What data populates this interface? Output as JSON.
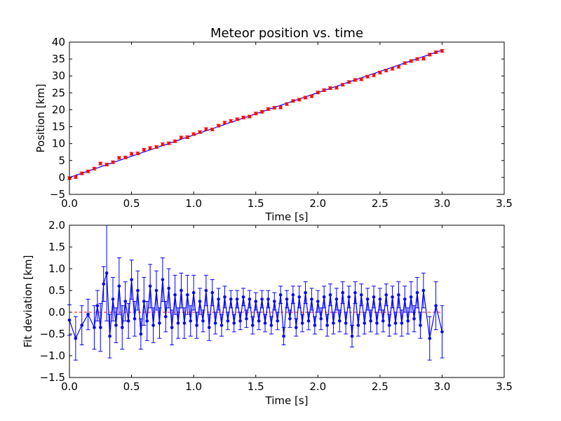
{
  "chart_data": [
    {
      "type": "scatter",
      "title": "Meteor position vs. time",
      "xlabel": "Time [s]",
      "ylabel": "Position [km]",
      "xlim": [
        0.0,
        3.5
      ],
      "ylim": [
        -5,
        40
      ],
      "xticks": [
        "0.0",
        "0.5",
        "1.0",
        "1.5",
        "2.0",
        "2.5",
        "3.0",
        "3.5"
      ],
      "yticks": [
        "−5",
        "0",
        "5",
        "10",
        "15",
        "20",
        "25",
        "30",
        "35",
        "40"
      ],
      "grid": false,
      "legend": "none",
      "colors": {
        "points": "#ff0000",
        "fit": "#0000ff"
      },
      "fit_line": {
        "x": [
          0.0,
          3.0
        ],
        "y": [
          0.0,
          37.6
        ]
      },
      "series": [
        {
          "error": 0.4,
          "x": [
            0.0,
            0.05,
            0.1,
            0.15,
            0.2,
            0.25,
            0.3,
            0.35,
            0.4,
            0.45,
            0.5,
            0.55,
            0.6,
            0.65,
            0.7,
            0.75,
            0.8,
            0.85,
            0.9,
            0.95,
            1.0,
            1.05,
            1.1,
            1.15,
            1.2,
            1.25,
            1.3,
            1.35,
            1.4,
            1.45,
            1.5,
            1.55,
            1.6,
            1.65,
            1.7,
            1.75,
            1.8,
            1.85,
            1.9,
            1.95,
            2.0,
            2.05,
            2.1,
            2.15,
            2.2,
            2.25,
            2.3,
            2.35,
            2.4,
            2.45,
            2.5,
            2.55,
            2.6,
            2.65,
            2.7,
            2.75,
            2.8,
            2.85,
            2.9,
            2.95,
            3.0
          ],
          "y": [
            -0.2,
            0.1,
            1.2,
            1.8,
            2.6,
            4.1,
            3.8,
            4.5,
            5.8,
            5.9,
            7.0,
            7.1,
            8.2,
            8.7,
            9.0,
            9.8,
            10.1,
            10.7,
            11.8,
            11.9,
            12.8,
            13.4,
            14.3,
            14.2,
            15.3,
            16.2,
            16.7,
            17.2,
            17.7,
            18.0,
            18.9,
            19.4,
            20.2,
            20.6,
            20.7,
            21.7,
            22.6,
            23.0,
            23.6,
            24.0,
            25.1,
            25.8,
            26.4,
            26.5,
            27.4,
            28.2,
            28.8,
            29.0,
            29.8,
            30.2,
            31.0,
            31.6,
            32.1,
            32.7,
            33.8,
            34.4,
            35.0,
            35.1,
            36.3,
            37.0,
            37.4
          ]
        }
      ]
    },
    {
      "type": "line",
      "title": "",
      "xlabel": "Time [s]",
      "ylabel": "Fit deviation [km]",
      "xlim": [
        0.0,
        3.5
      ],
      "ylim": [
        -1.5,
        2.0
      ],
      "xticks": [
        "0.0",
        "0.5",
        "1.0",
        "1.5",
        "2.0",
        "2.5",
        "3.0",
        "3.5"
      ],
      "yticks": [
        "−1.5",
        "−1.0",
        "−0.5",
        "0.0",
        "0.5",
        "1.0",
        "1.5",
        "2.0"
      ],
      "grid": false,
      "legend": "none",
      "colors": {
        "series": "#0000ff",
        "zero_line": "#ff0000"
      },
      "zero_line": 0.0,
      "series": [
        {
          "x": [
            0.0,
            0.05,
            0.1,
            0.15,
            0.2,
            0.225,
            0.25,
            0.275,
            0.3,
            0.325,
            0.35,
            0.375,
            0.4,
            0.425,
            0.45,
            0.475,
            0.5,
            0.525,
            0.55,
            0.575,
            0.6,
            0.625,
            0.65,
            0.675,
            0.7,
            0.725,
            0.75,
            0.775,
            0.8,
            0.825,
            0.85,
            0.875,
            0.9,
            0.925,
            0.95,
            0.975,
            1.0,
            1.025,
            1.05,
            1.075,
            1.1,
            1.125,
            1.15,
            1.175,
            1.2,
            1.225,
            1.25,
            1.275,
            1.3,
            1.325,
            1.35,
            1.375,
            1.4,
            1.425,
            1.45,
            1.475,
            1.5,
            1.525,
            1.55,
            1.575,
            1.6,
            1.625,
            1.65,
            1.675,
            1.7,
            1.725,
            1.75,
            1.775,
            1.8,
            1.825,
            1.85,
            1.875,
            1.9,
            1.925,
            1.95,
            1.975,
            2.0,
            2.025,
            2.05,
            2.075,
            2.1,
            2.125,
            2.15,
            2.175,
            2.2,
            2.225,
            2.25,
            2.275,
            2.3,
            2.325,
            2.35,
            2.375,
            2.4,
            2.425,
            2.45,
            2.475,
            2.5,
            2.525,
            2.55,
            2.575,
            2.6,
            2.625,
            2.65,
            2.675,
            2.7,
            2.725,
            2.75,
            2.775,
            2.8,
            2.825,
            2.85,
            2.9,
            2.95,
            3.0
          ],
          "y": [
            -0.18,
            -0.6,
            -0.3,
            -0.05,
            -0.35,
            0.15,
            -0.35,
            0.65,
            0.9,
            -0.55,
            0.3,
            -0.3,
            0.6,
            -0.35,
            0.25,
            -0.2,
            0.75,
            -0.15,
            0.5,
            -0.5,
            0.25,
            -0.2,
            0.6,
            -0.3,
            0.5,
            -0.25,
            0.75,
            -0.1,
            0.55,
            -0.35,
            0.4,
            -0.25,
            0.5,
            -0.25,
            0.4,
            -0.2,
            0.45,
            -0.3,
            0.25,
            -0.2,
            0.5,
            -0.35,
            0.45,
            -0.25,
            0.3,
            -0.3,
            0.35,
            -0.2,
            0.3,
            -0.25,
            0.3,
            -0.2,
            0.35,
            -0.15,
            0.3,
            -0.3,
            0.25,
            -0.2,
            0.3,
            -0.25,
            0.3,
            -0.3,
            0.25,
            -0.2,
            0.4,
            -0.55,
            0.3,
            -0.15,
            0.4,
            -0.35,
            0.35,
            -0.25,
            0.45,
            -0.2,
            0.3,
            -0.3,
            0.25,
            -0.15,
            0.35,
            -0.3,
            0.4,
            -0.25,
            0.3,
            -0.2,
            0.45,
            -0.25,
            0.35,
            -0.55,
            0.45,
            -0.3,
            0.4,
            -0.25,
            0.3,
            -0.2,
            0.35,
            -0.25,
            0.3,
            -0.2,
            0.4,
            -0.3,
            0.35,
            -0.25,
            0.4,
            -0.25,
            0.3,
            -0.2,
            0.35,
            -0.15,
            0.45,
            -0.3,
            0.5,
            -0.6,
            0.15,
            -0.45
          ],
          "errors": [
            0.35,
            0.5,
            0.45,
            0.35,
            0.5,
            0.35,
            0.55,
            0.4,
            1.1,
            0.5,
            0.5,
            0.4,
            0.65,
            0.5,
            0.45,
            0.4,
            0.45,
            0.4,
            0.45,
            0.35,
            0.55,
            0.45,
            0.5,
            0.4,
            0.45,
            0.35,
            0.5,
            0.35,
            0.45,
            0.4,
            0.45,
            0.35,
            0.4,
            0.35,
            0.45,
            0.35,
            0.4,
            0.3,
            0.3,
            0.25,
            0.35,
            0.3,
            0.3,
            0.25,
            0.25,
            0.25,
            0.25,
            0.2,
            0.2,
            0.2,
            0.2,
            0.2,
            0.2,
            0.2,
            0.2,
            0.2,
            0.2,
            0.2,
            0.2,
            0.2,
            0.2,
            0.2,
            0.2,
            0.2,
            0.2,
            0.2,
            0.2,
            0.2,
            0.2,
            0.2,
            0.25,
            0.2,
            0.25,
            0.2,
            0.25,
            0.2,
            0.25,
            0.25,
            0.25,
            0.25,
            0.25,
            0.25,
            0.25,
            0.25,
            0.25,
            0.25,
            0.25,
            0.25,
            0.25,
            0.25,
            0.25,
            0.25,
            0.25,
            0.25,
            0.25,
            0.25,
            0.25,
            0.25,
            0.25,
            0.25,
            0.25,
            0.25,
            0.3,
            0.3,
            0.3,
            0.3,
            0.35,
            0.3,
            0.35,
            0.3,
            0.4,
            0.5,
            0.55,
            0.6
          ]
        }
      ]
    }
  ]
}
